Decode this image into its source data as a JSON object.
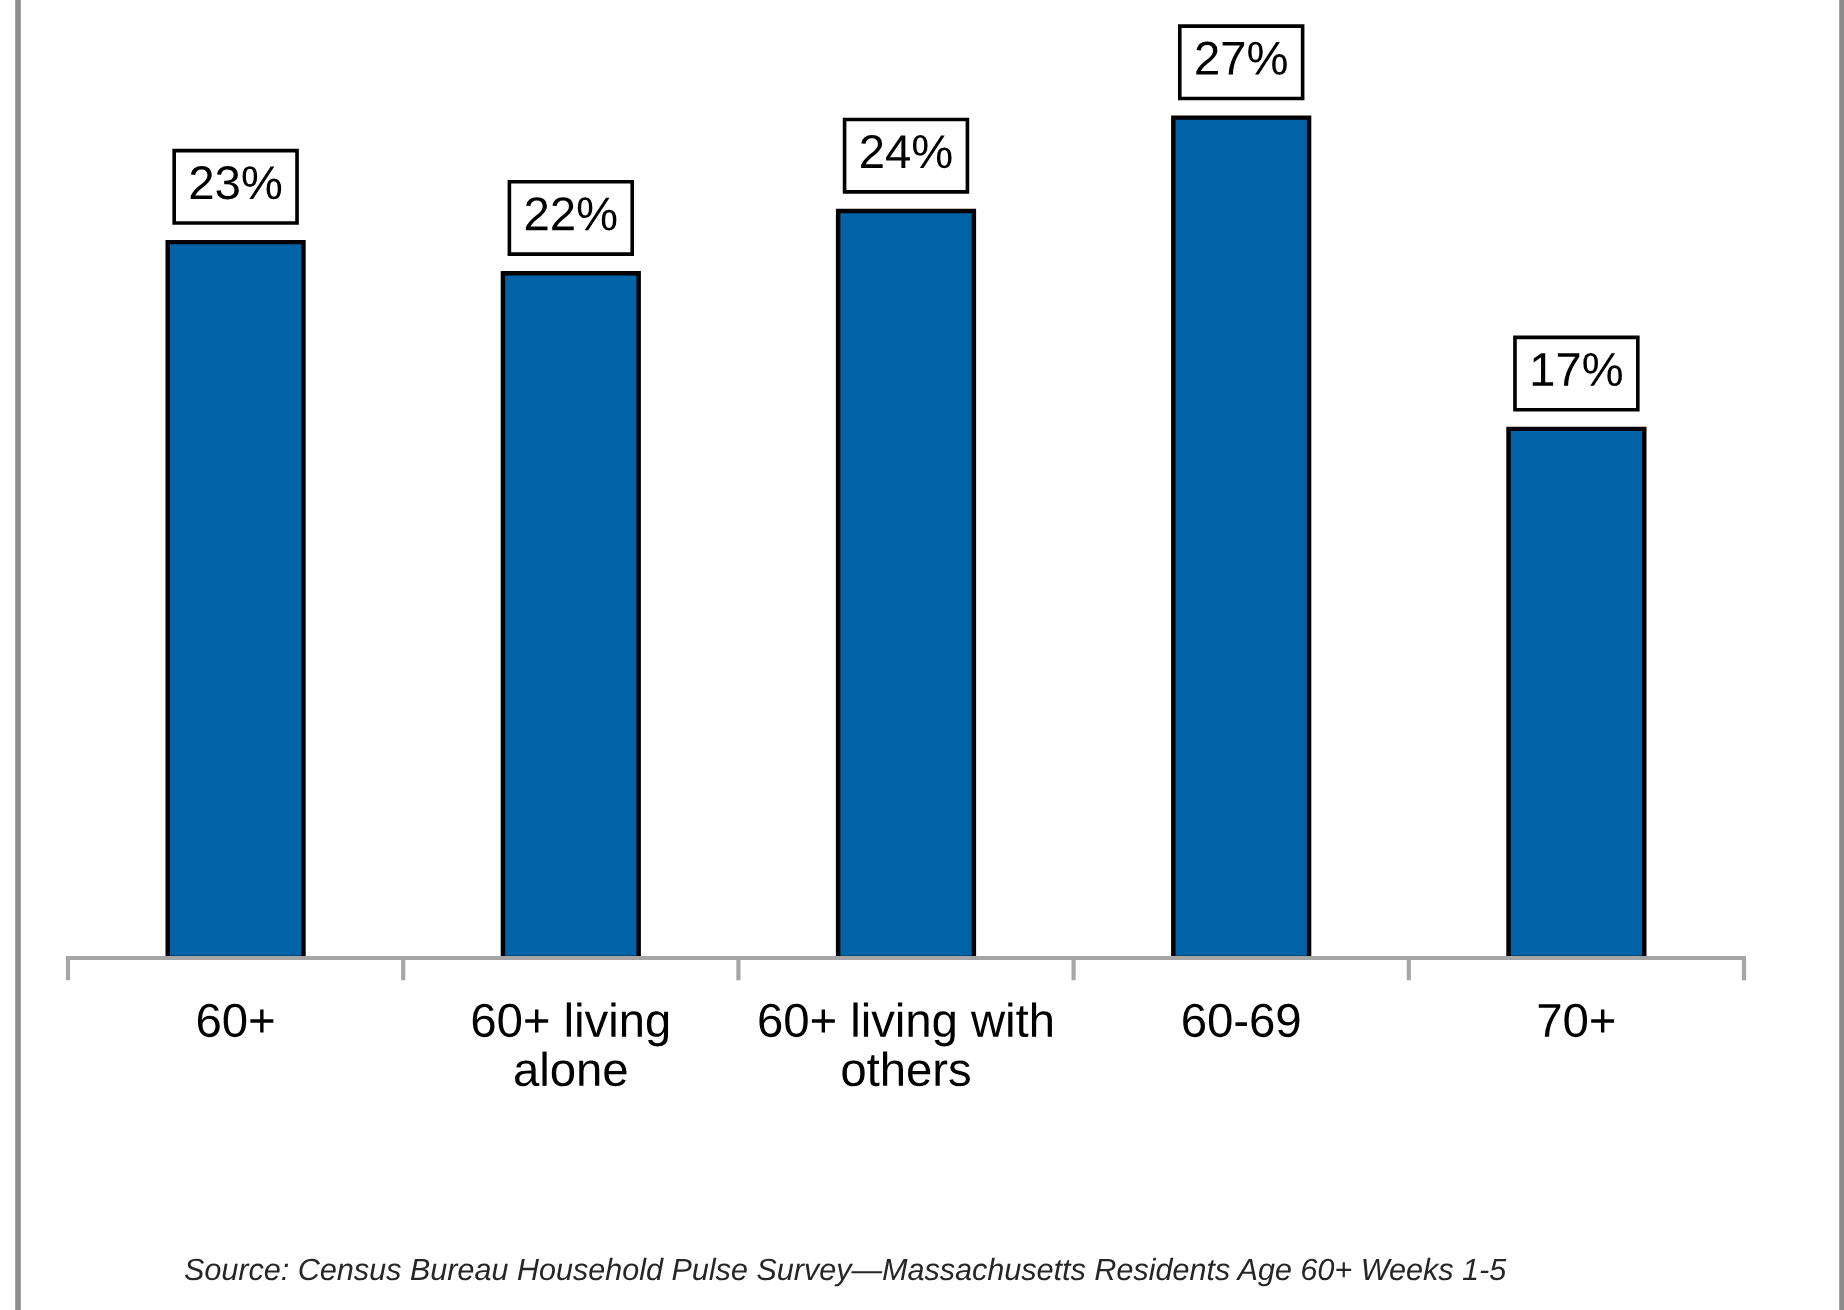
{
  "chart_data": {
    "type": "bar",
    "categories": [
      "60+",
      "60+ living alone",
      "60+ living with others",
      "60-69",
      "70+"
    ],
    "values": [
      23,
      22,
      24,
      27,
      17
    ],
    "value_labels": [
      "23%",
      "22%",
      "24%",
      "27%",
      "17%"
    ],
    "color": "#0063a6",
    "annotations": [
      "Source: Census Bureau Household Pulse Survey—Massachusetts Residents Age 60+ Weeks 1-5"
    ]
  }
}
